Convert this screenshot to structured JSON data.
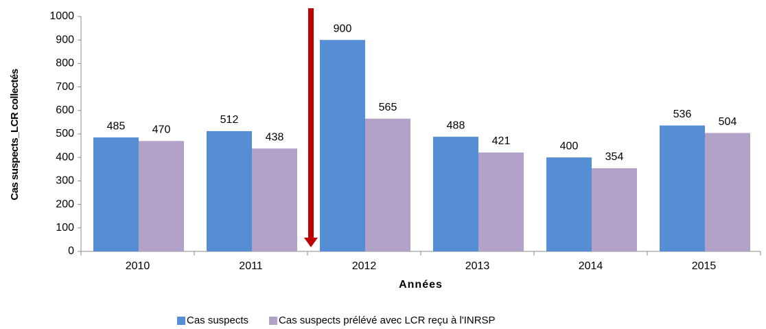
{
  "chart_data": {
    "type": "bar",
    "categories": [
      "2010",
      "2011",
      "2012",
      "2013",
      "2014",
      "2015"
    ],
    "series": [
      {
        "name": "Cas suspects",
        "color": "#558ed5",
        "values": [
          485,
          512,
          900,
          488,
          400,
          536
        ]
      },
      {
        "name": "Cas suspects prélévé avec LCR reçu à l'INRSP",
        "color": "#b3a2c7",
        "values": [
          470,
          438,
          565,
          421,
          354,
          504
        ]
      }
    ],
    "x_label": "Années",
    "y_label": "Cas suspects_LCR collectés",
    "ylim": [
      0,
      1000
    ],
    "yticks": [
      0,
      100,
      200,
      300,
      400,
      500,
      600,
      700,
      800,
      900,
      1000
    ],
    "grid": false,
    "legend": "bottom"
  }
}
